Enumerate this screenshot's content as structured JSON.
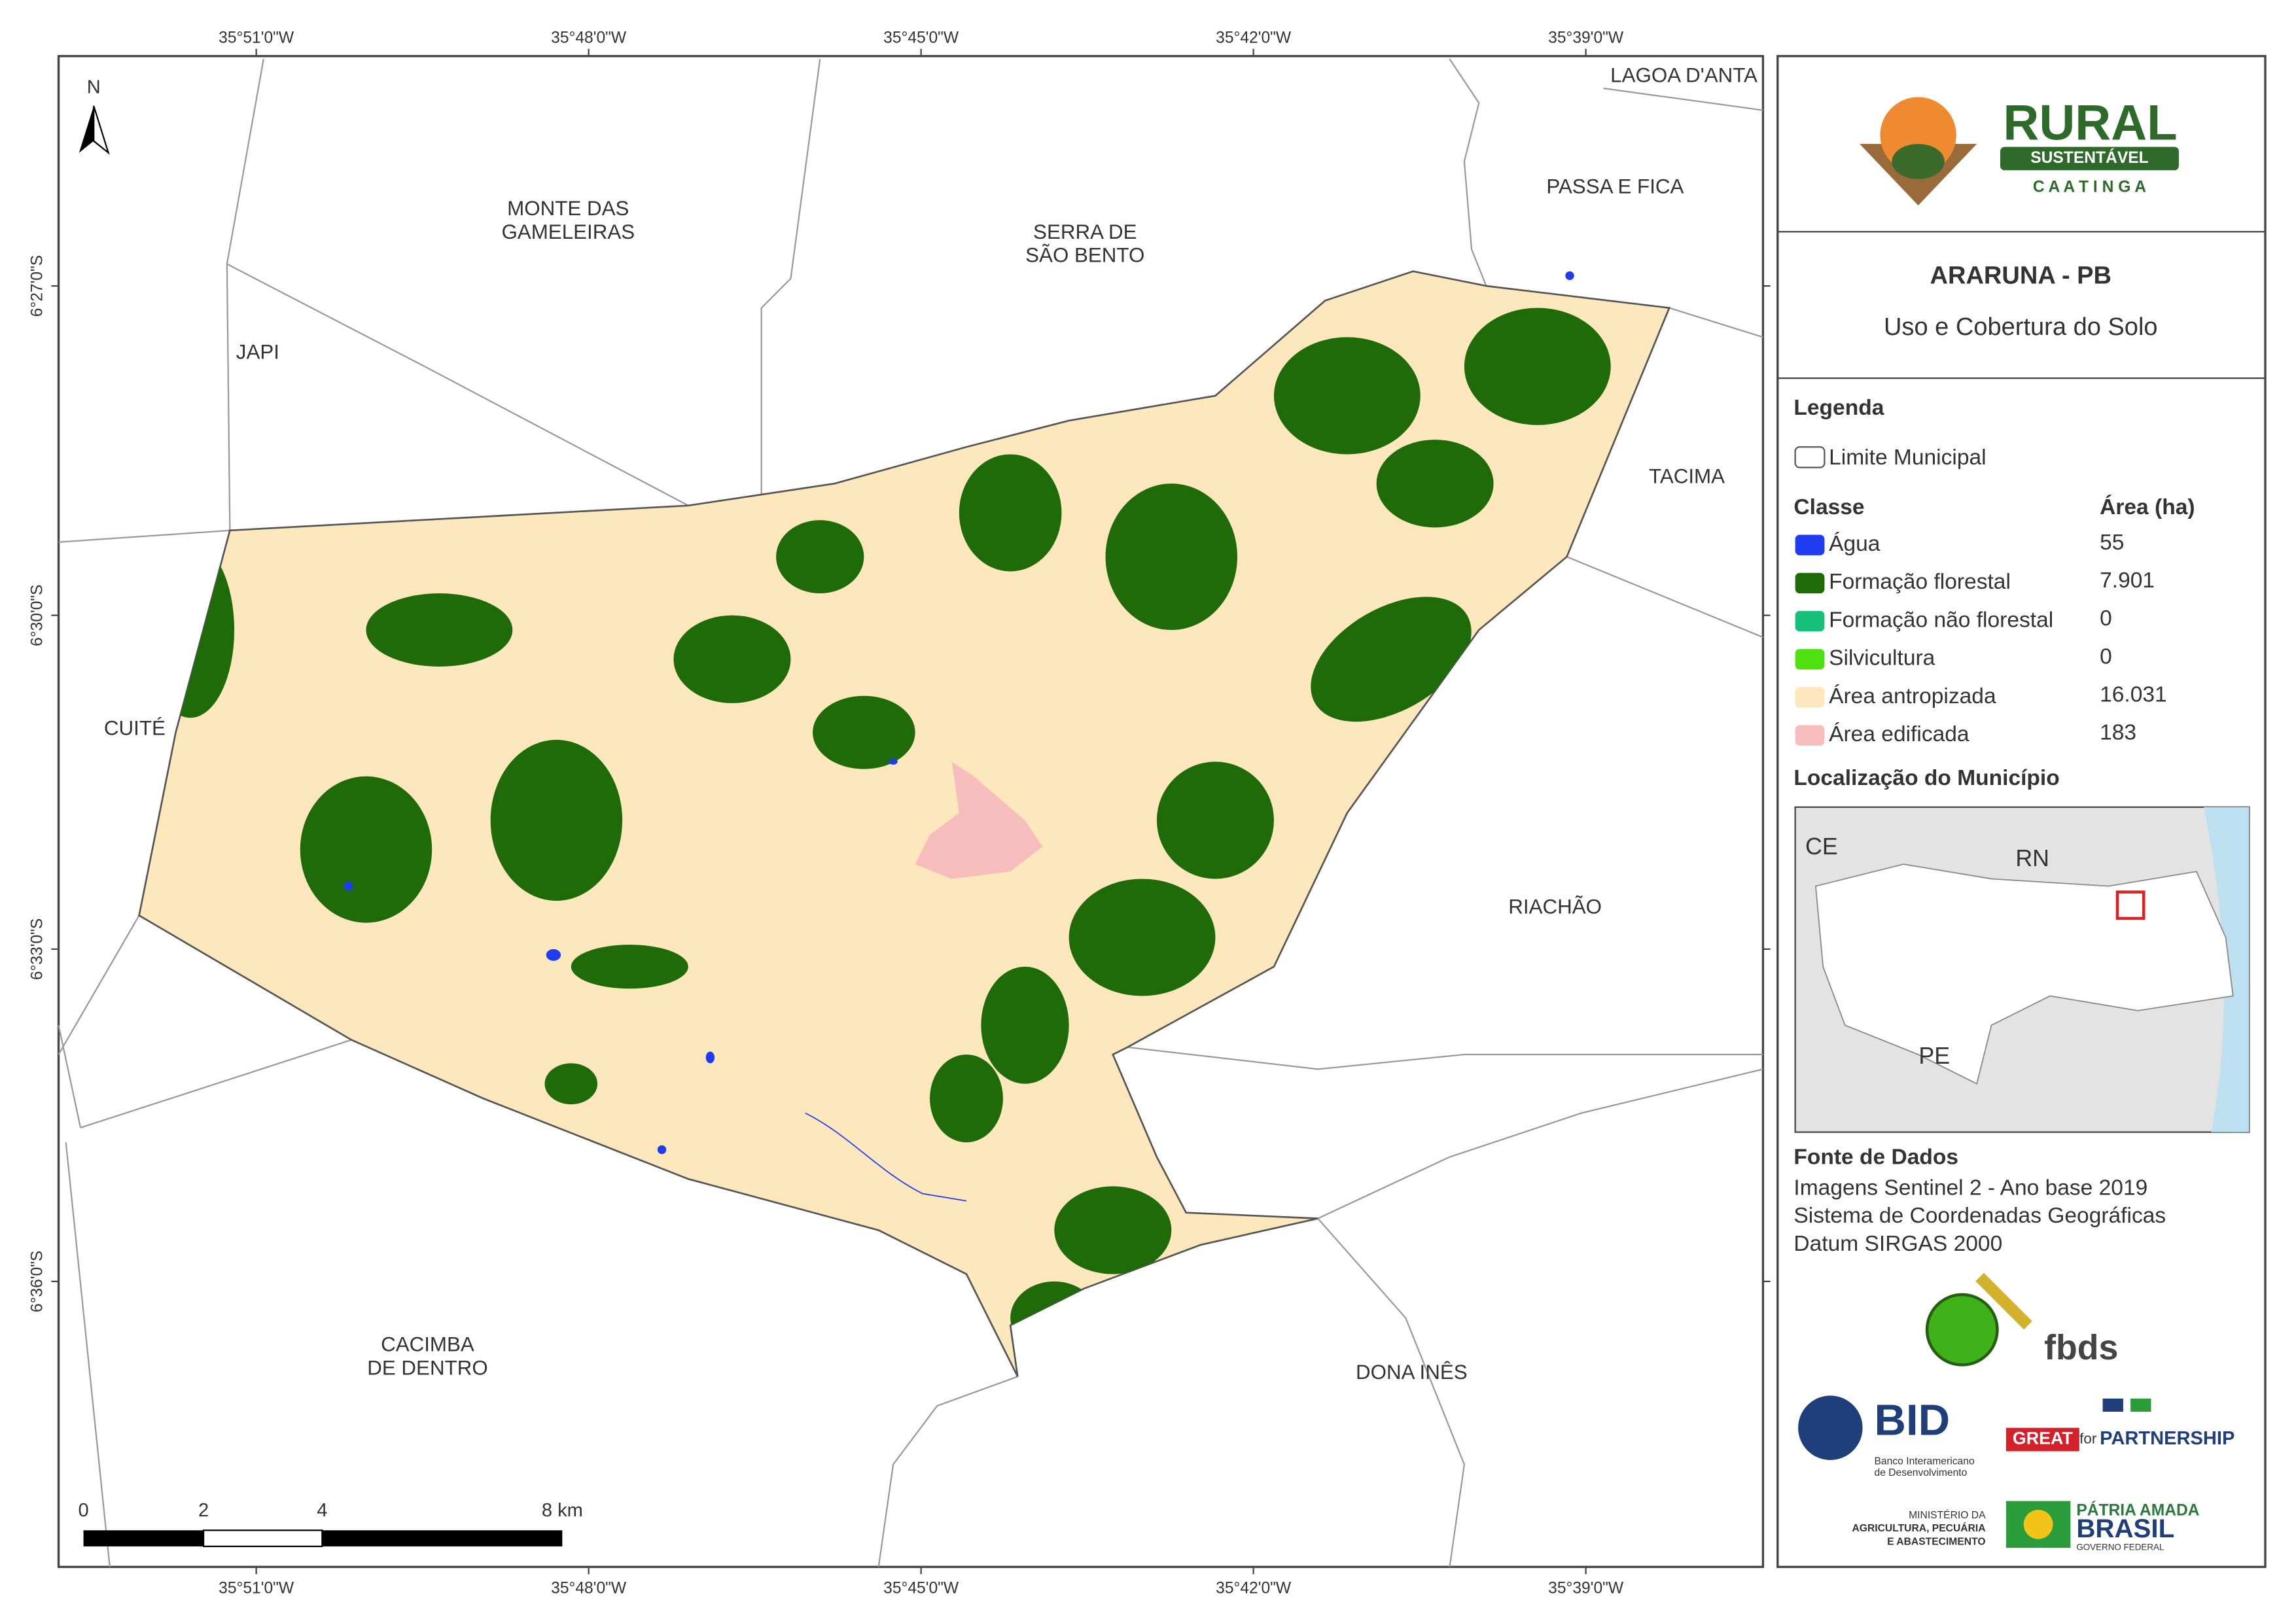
{
  "map": {
    "x_labels": [
      "35°51'0\"W",
      "35°48'0\"W",
      "35°45'0\"W",
      "35°42'0\"W",
      "35°39'0\"W"
    ],
    "y_labels": [
      "6°27'0\"S",
      "6°30'0\"S",
      "6°33'0\"S",
      "6°36'0\"S"
    ],
    "north": "N",
    "places": [
      [
        "LAGOA D'ANTA"
      ],
      [
        "PASSA E FICA"
      ],
      [
        "MONTE DAS",
        "GAMELEIRAS"
      ],
      [
        "SERRA DE",
        "SÃO BENTO"
      ],
      [
        "JAPI"
      ],
      [
        "TACIMA"
      ],
      [
        "CUITÉ"
      ],
      [
        "RIACHÃO"
      ],
      [
        "CACIMBA",
        "DE DENTRO"
      ],
      [
        "DONA INÊS"
      ]
    ],
    "scale": [
      "0",
      "2",
      "4",
      "8 km"
    ]
  },
  "panel": {
    "logo": [
      "RURAL",
      "SUSTENTÁVEL",
      "C A A T I N G A"
    ],
    "title": "ARARUNA - PB",
    "subtitle": "Uso e Cobertura do Solo",
    "legend": {
      "title": "Legenda",
      "boundary": "Limite Municipal",
      "class_header": "Classe",
      "area_header": "Área (ha)",
      "classes": [
        {
          "name": "Água",
          "area": "55",
          "color": "#1f3cf0"
        },
        {
          "name": "Formação florestal",
          "area": "7.901",
          "color": "#1f6b0a"
        },
        {
          "name": "Formação não florestal",
          "area": "0",
          "color": "#19c07c"
        },
        {
          "name": "Silvicultura",
          "area": "0",
          "color": "#4fe012"
        },
        {
          "name": "Área antropizada",
          "area": "16.031",
          "color": "#fde8bd"
        },
        {
          "name": "Área edificada",
          "area": "183",
          "color": "#f7bdbd"
        }
      ]
    },
    "location": {
      "title": "Localização do Município",
      "labels": [
        "CE",
        "RN",
        "PE"
      ]
    },
    "source": {
      "title": "Fonte de Dados",
      "lines": [
        "Imagens Sentinel 2 - Ano base 2019",
        "Sistema de Coordenadas Geográficas",
        "Datum SIRGAS 2000"
      ]
    },
    "sponsors": [
      "fbds",
      "BID",
      "Banco Interamericano",
      "de Desenvolvimento",
      "GREAT",
      "for",
      "PARTNERSHIP",
      "MINISTÉRIO DA",
      "AGRICULTURA, PECUÁRIA",
      "E ABASTECIMENTO",
      "PÁTRIA AMADA",
      "BRASIL",
      "GOVERNO FEDERAL"
    ]
  }
}
